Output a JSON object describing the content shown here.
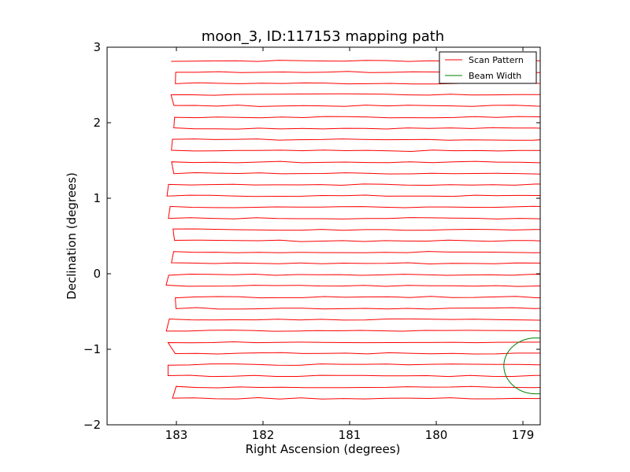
{
  "chart_data": {
    "type": "line",
    "title": "moon_3, ID:117153 mapping path",
    "xlabel": "Right Ascension (degrees)",
    "ylabel": "Declination (degrees)",
    "xlim": [
      183.8,
      178.8
    ],
    "ylim": [
      -2,
      3
    ],
    "xticks": [
      183,
      182,
      181,
      180,
      179
    ],
    "xtick_labels": [
      "183",
      "182",
      "181",
      "180",
      "179"
    ],
    "yticks": [
      -2,
      -1,
      0,
      1,
      2,
      3
    ],
    "ytick_labels": [
      "−2",
      "−1",
      "0",
      "1",
      "2",
      "3"
    ],
    "grid": false,
    "legend": {
      "placement": "top-right",
      "entries": [
        {
          "label": "Scan Pattern",
          "color": "#ff0000"
        },
        {
          "label": "Beam Width",
          "color": "#008000"
        }
      ]
    },
    "series": [
      {
        "name": "Scan Pattern",
        "color": "#ff0000",
        "dec_top": 2.82,
        "dec_bottom": -1.65,
        "num_rows": 31,
        "ra_left": 183.05,
        "ra_right": 178.6
      },
      {
        "name": "Beam Width",
        "color": "#008000",
        "circle": {
          "center_ra": 178.85,
          "center_dec": -1.22,
          "radius_deg": 0.37
        }
      }
    ]
  }
}
